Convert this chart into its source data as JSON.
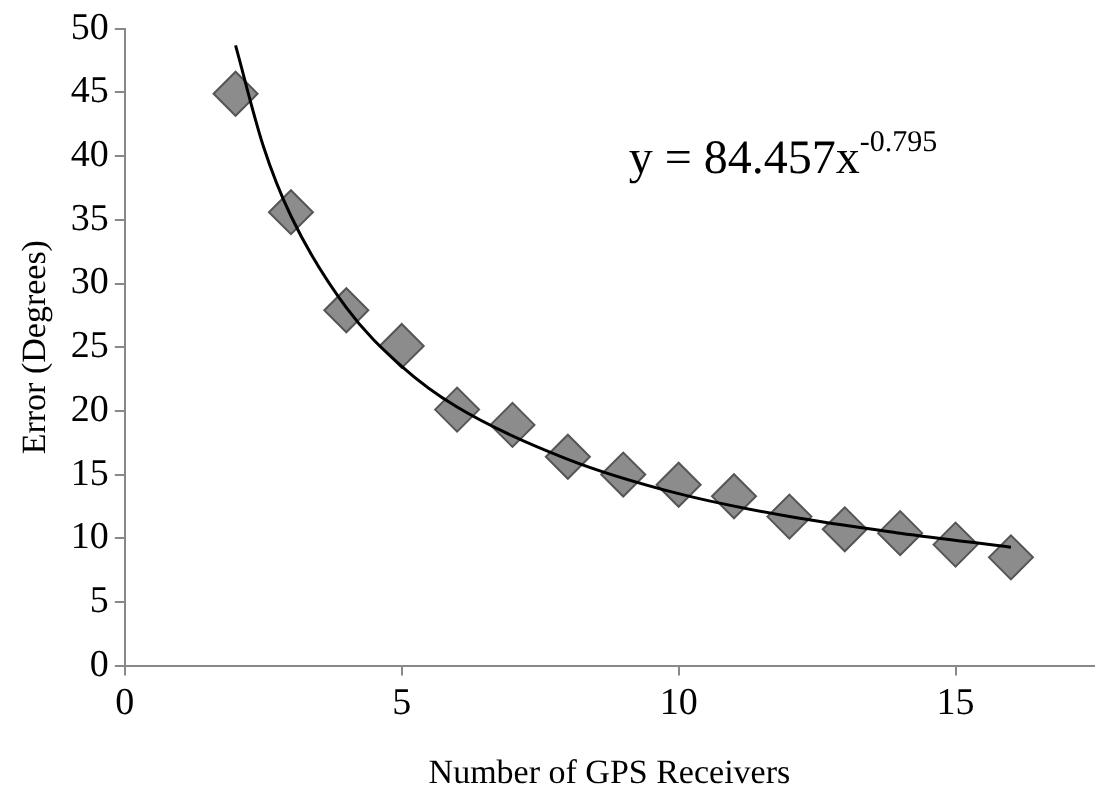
{
  "chart_data": {
    "type": "scatter",
    "xlabel": "Number of GPS Receivers",
    "ylabel": "Error (Degrees)",
    "marker": "diamond",
    "grid": false,
    "legend": false,
    "xlim": [
      0,
      17.5
    ],
    "xticks": [
      0,
      5,
      10,
      15
    ],
    "ylim": [
      0,
      50
    ],
    "yticks": [
      0,
      5,
      10,
      15,
      20,
      25,
      30,
      35,
      40,
      45,
      50
    ],
    "annotations": [
      "y = 84.457x$^{-0.795}$"
    ],
    "series": [
      {
        "color": "#8c8c8c",
        "x": [
          2,
          3,
          4,
          5,
          6,
          7,
          8,
          9,
          10,
          11,
          12,
          13,
          14,
          15,
          16
        ],
        "values": [
          44.9,
          35.6,
          27.9,
          25.1,
          20.1,
          18.9,
          16.4,
          15.0,
          14.2,
          13.3,
          11.7,
          10.7,
          10.4,
          9.5,
          8.5
        ]
      },
      {
        "type": "line",
        "marker": "none",
        "color": "#000000",
        "x": [
          2,
          2.5,
          3,
          4,
          5,
          6,
          8,
          10,
          12,
          14,
          16
        ],
        "values": [
          48.7,
          40.8,
          35.3,
          28.1,
          23.5,
          20.3,
          16.2,
          13.5,
          11.7,
          10.4,
          9.3
        ]
      }
    ]
  }
}
